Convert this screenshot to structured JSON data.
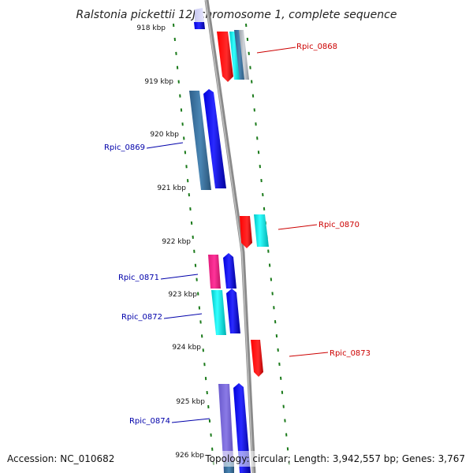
{
  "title": "Ralstonia pickettii 12J chromosome 1, complete sequence",
  "footer": {
    "accession": "Accession: NC_010682",
    "summary": "Topology: circular; Length: 3,942,557 bp; Genes: 3,767"
  },
  "colors": {
    "backbone": "#8a8a8a",
    "tick_dots": "#1a7a1a",
    "forward_label": "#cc0000",
    "reverse_label": "#0000aa"
  },
  "kbp_labels": [
    "918 kbp",
    "919 kbp",
    "920 kbp",
    "921 kbp",
    "922 kbp",
    "923 kbp",
    "924 kbp",
    "925 kbp",
    "926 kbp"
  ],
  "gene_labels": [
    {
      "name": "Rpic_0868",
      "strand": "forward"
    },
    {
      "name": "Rpic_0869",
      "strand": "reverse"
    },
    {
      "name": "Rpic_0870",
      "strand": "forward"
    },
    {
      "name": "Rpic_0871",
      "strand": "reverse"
    },
    {
      "name": "Rpic_0872",
      "strand": "reverse"
    },
    {
      "name": "Rpic_0873",
      "strand": "forward"
    },
    {
      "name": "Rpic_0874",
      "strand": "reverse"
    }
  ]
}
